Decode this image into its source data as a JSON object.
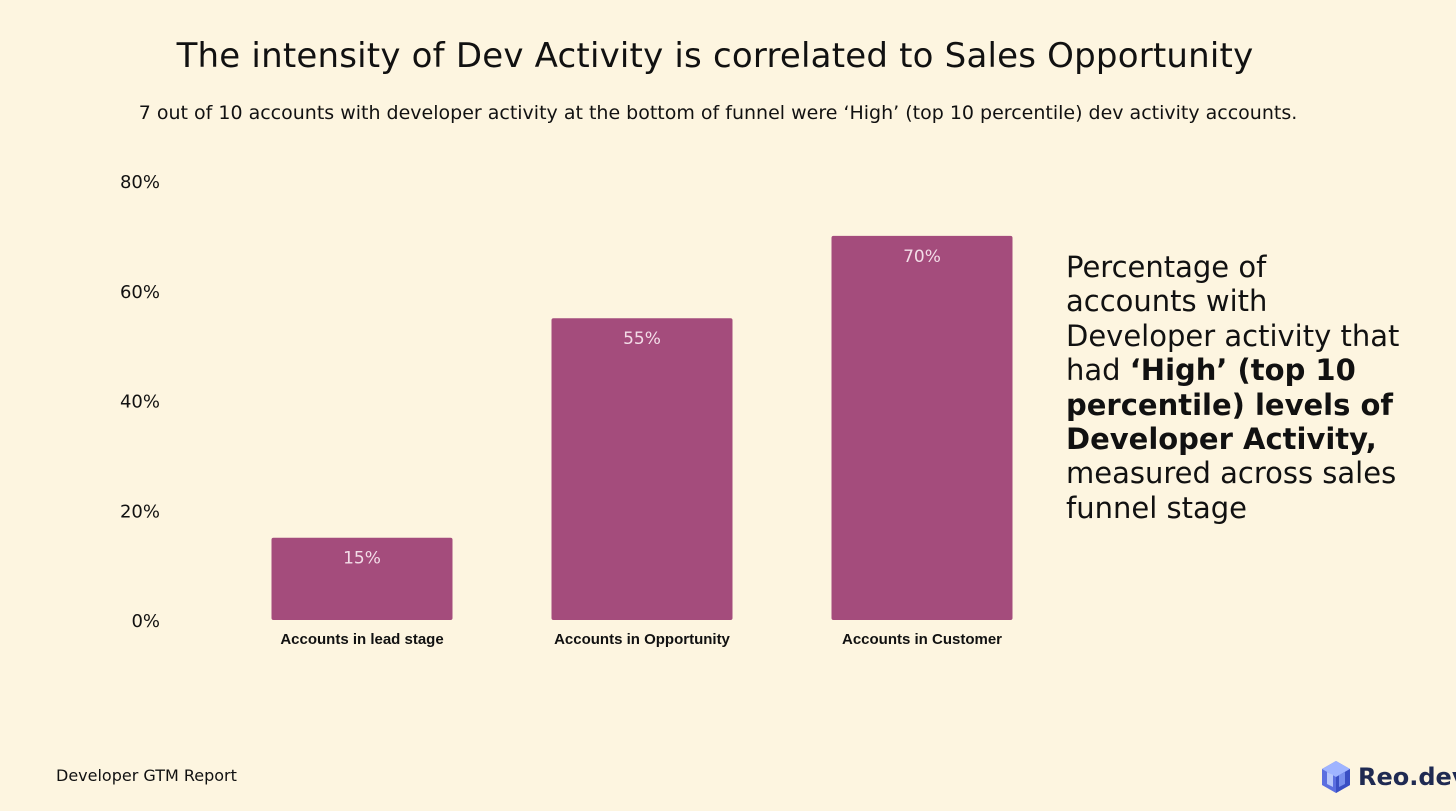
{
  "title": "The intensity of Dev Activity is correlated to Sales Opportunity",
  "subtitle": "7 out of 10 accounts with developer activity at the bottom of funnel were ‘High’ (top 10 percentile) dev activity accounts.",
  "note": {
    "part1": "Percentage of accounts with Developer activity that had ",
    "bold": "‘High’ (top 10 percentile) levels of Developer Activity,",
    "part2": " measured across sales funnel stage"
  },
  "footer": "Developer GTM Report",
  "brand": {
    "name": "Reo.dev",
    "icon": "reo-cube-logo-icon"
  },
  "colors": {
    "bar": "#a44c7c",
    "background": "#fdf5e0",
    "brand_text": "#1f2a52"
  },
  "chart_data": {
    "type": "bar",
    "categories": [
      "Accounts in lead stage",
      "Accounts in Opportunity",
      "Accounts in Customer"
    ],
    "values": [
      15,
      55,
      70
    ],
    "data_labels": [
      "15%",
      "55%",
      "70%"
    ],
    "ylim": [
      0,
      80
    ],
    "yticks": [
      0,
      20,
      40,
      60,
      80
    ],
    "ytick_labels": [
      "0%",
      "20%",
      "40%",
      "60%",
      "80%"
    ],
    "grid": false,
    "xlabel": "",
    "ylabel": ""
  }
}
